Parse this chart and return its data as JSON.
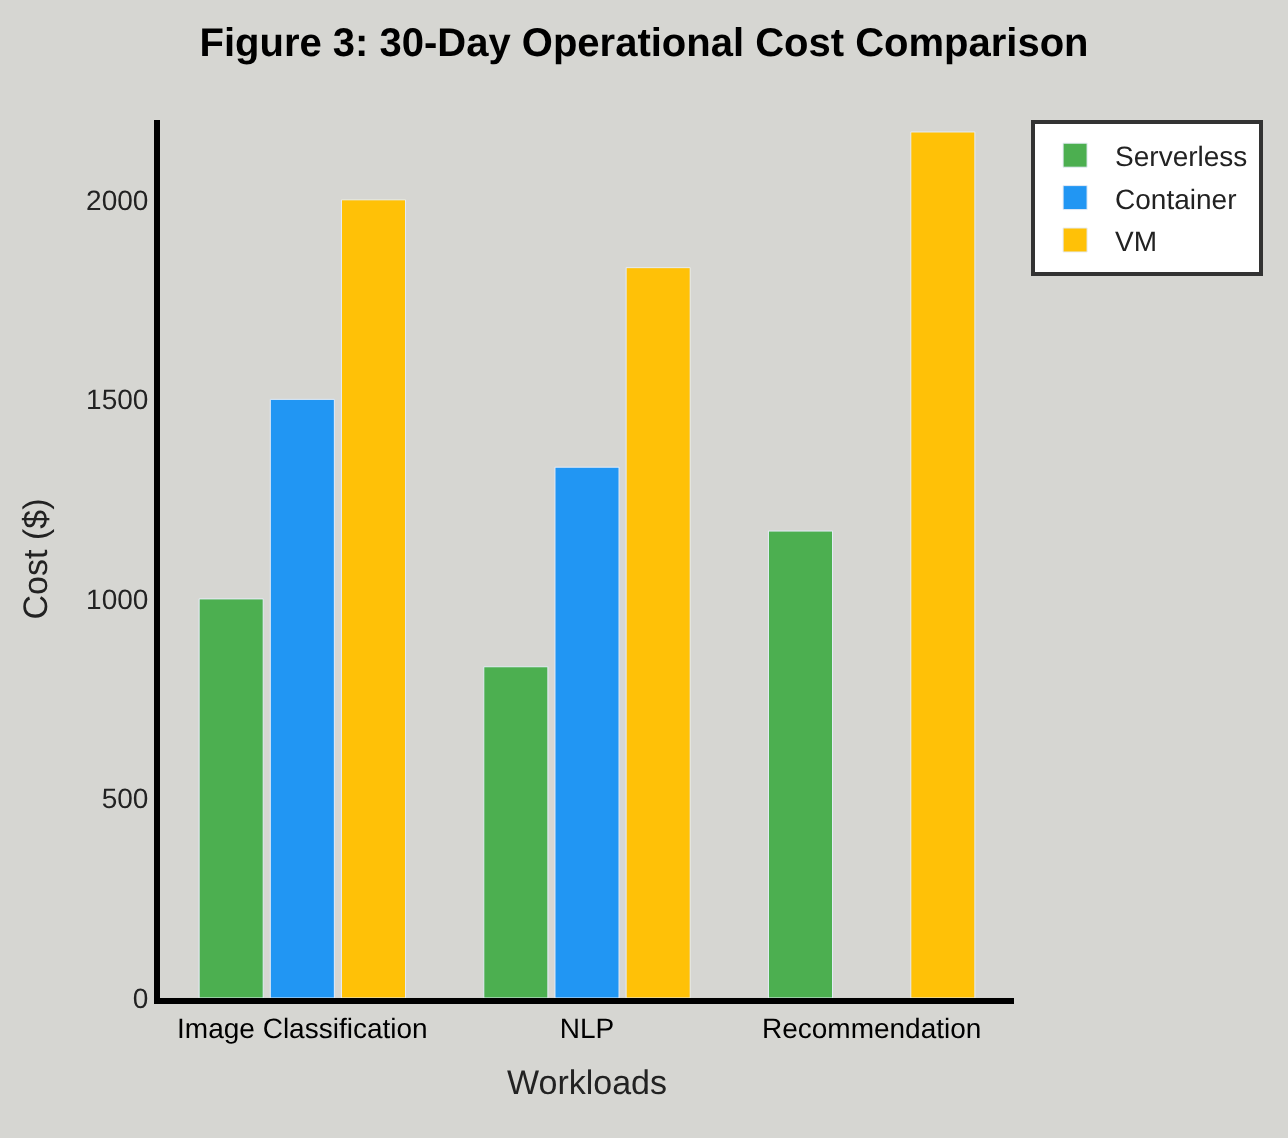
{
  "chart_data": {
    "type": "bar",
    "title": "Figure 3: 30-Day Operational Cost Comparison",
    "xlabel": "Workloads",
    "ylabel": "Cost ($)",
    "categories": [
      "Image Classification",
      "NLP",
      "Recommendation"
    ],
    "series": [
      {
        "name": "Serverless",
        "color": "#4caf50",
        "values": [
          1000,
          830,
          1170
        ]
      },
      {
        "name": "Container",
        "color": "#2196f3",
        "values": [
          1500,
          1330,
          null
        ]
      },
      {
        "name": "VM",
        "color": "#ffc107",
        "values": [
          2000,
          1830,
          2170
        ]
      }
    ],
    "ylim": [
      0,
      2200
    ],
    "yticks": [
      0,
      500,
      1000,
      1500,
      2000
    ],
    "grid": false,
    "legend": "right"
  }
}
